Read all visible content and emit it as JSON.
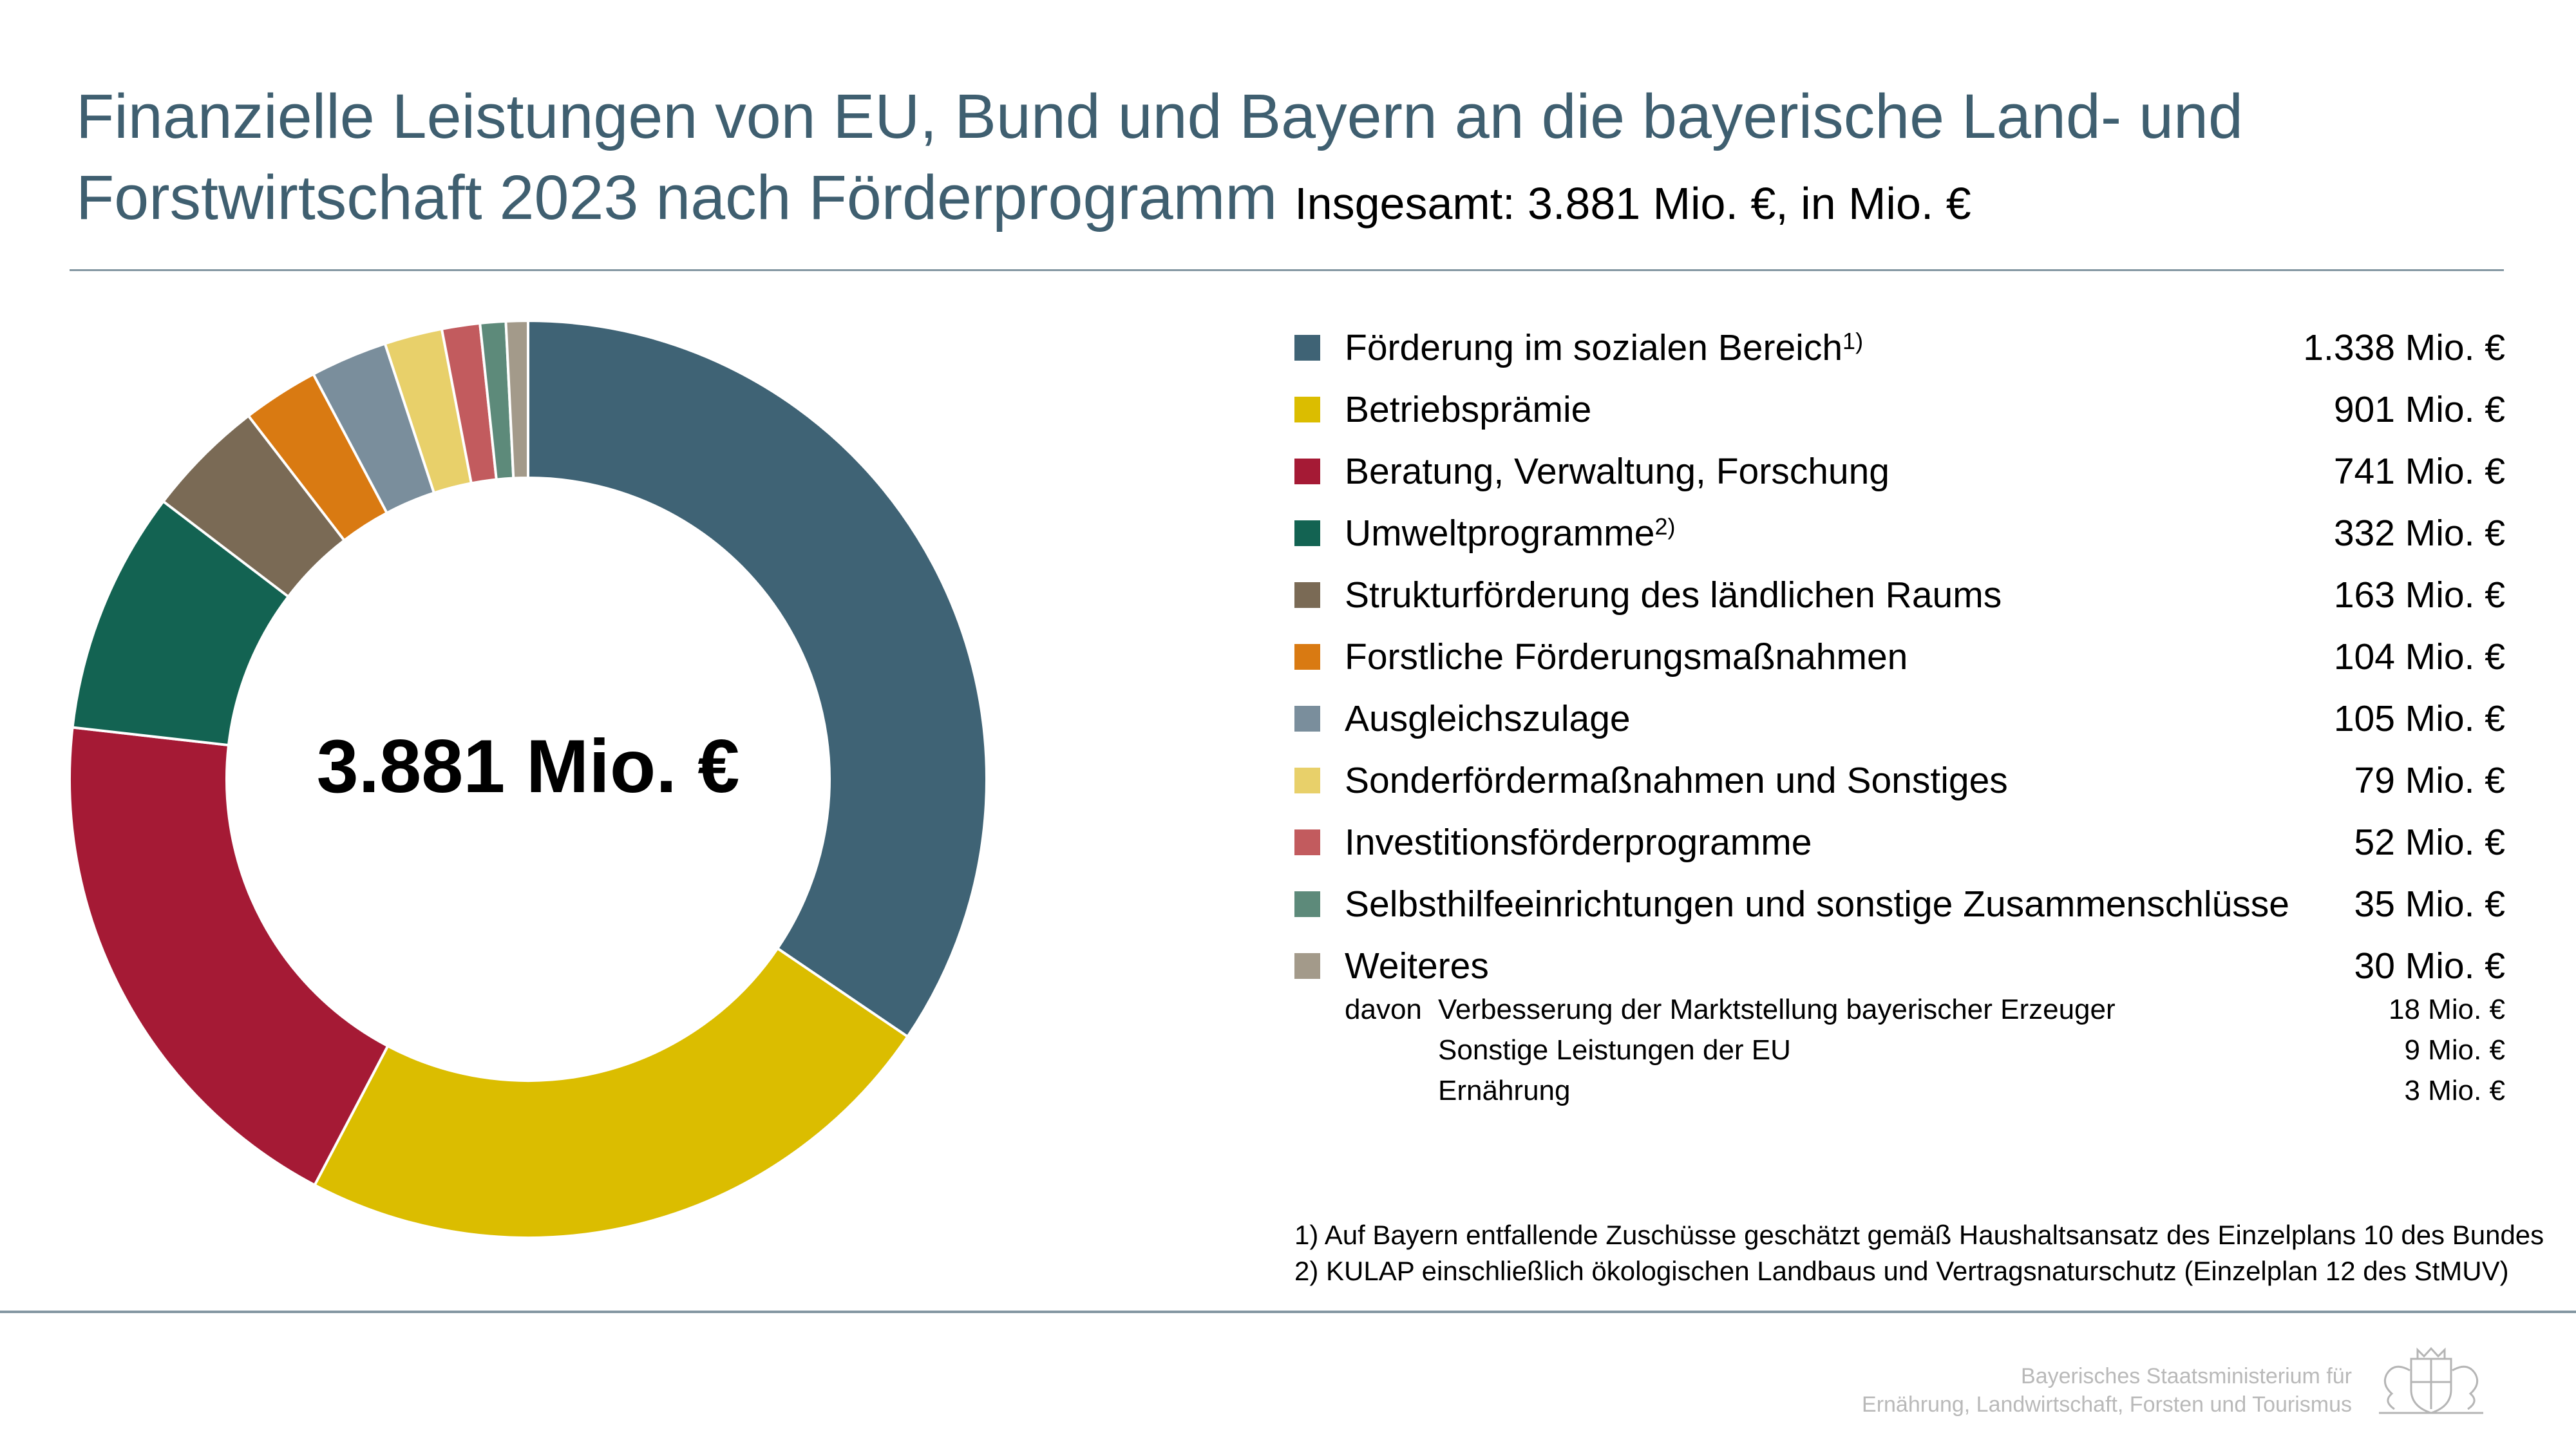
{
  "header": {
    "title_line1": "Finanzielle Leistungen von EU, Bund und Bayern an die bayerische Land- und",
    "title_line2": "Forstwirtschaft 2023 nach Förderprogramm",
    "subtitle": "Insgesamt: 3.881 Mio. €, in Mio. €"
  },
  "chart_data": {
    "type": "pie",
    "style": "donut",
    "center_label": "3.881 Mio. €",
    "total": 3881,
    "unit": "Mio. €",
    "slices": [
      {
        "label": "Förderung im sozialen Bereich",
        "footnote_ref": "1)",
        "value": 1338,
        "value_label": "1.338 Mio. €",
        "color": "#3f6375"
      },
      {
        "label": "Betriebsprämie",
        "footnote_ref": "",
        "value": 901,
        "value_label": "901 Mio. €",
        "color": "#dbbd00"
      },
      {
        "label": "Beratung, Verwaltung, Forschung",
        "footnote_ref": "",
        "value": 741,
        "value_label": "741 Mio. €",
        "color": "#a51a35"
      },
      {
        "label": "Umweltprogramme",
        "footnote_ref": "2)",
        "value": 332,
        "value_label": "332 Mio. €",
        "color": "#136352"
      },
      {
        "label": "Strukturförderung des ländlichen Raums",
        "footnote_ref": "",
        "value": 163,
        "value_label": "163 Mio. €",
        "color": "#7a6a55"
      },
      {
        "label": "Forstliche Förderungsmaßnahmen",
        "footnote_ref": "",
        "value": 104,
        "value_label": "104 Mio. €",
        "color": "#d97a12"
      },
      {
        "label": "Ausgleichszulage",
        "footnote_ref": "",
        "value": 105,
        "value_label": "105 Mio. €",
        "color": "#7a8e9c"
      },
      {
        "label": "Sonderfördermaßnahmen und Sonstiges",
        "footnote_ref": "",
        "value": 79,
        "value_label": "79 Mio. €",
        "color": "#e8d06a"
      },
      {
        "label": "Investitionsförderprogramme",
        "footnote_ref": "",
        "value": 52,
        "value_label": "52 Mio. €",
        "color": "#c25b5e"
      },
      {
        "label": "Selbsthilfeeinrichtungen und sonstige Zusammenschlüsse",
        "footnote_ref": "",
        "value": 35,
        "value_label": "35 Mio. €",
        "color": "#5d8a7a"
      },
      {
        "label": "Weiteres",
        "footnote_ref": "",
        "value": 30,
        "value_label": "30 Mio. €",
        "color": "#a39a8a"
      }
    ],
    "sub_items": {
      "prefix": "davon",
      "items": [
        {
          "label": "Verbesserung der Marktstellung bayerischer Erzeuger",
          "value": 18,
          "value_label": "18 Mio. €"
        },
        {
          "label": "Sonstige Leistungen der EU",
          "value": 9,
          "value_label": "9 Mio. €"
        },
        {
          "label": "Ernährung",
          "value": 3,
          "value_label": "3 Mio. €"
        }
      ]
    }
  },
  "footnotes": [
    "1) Auf Bayern entfallende Zuschüsse geschätzt gemäß Haushaltsansatz des Einzelplans 10 des Bundes",
    "2) KULAP einschließlich ökologischen Landbaus und Vertragsnaturschutz (Einzelplan 12 des StMUV)"
  ],
  "footer": {
    "ministry_line1": "Bayerisches Staatsministerium für",
    "ministry_line2": "Ernährung, Landwirtschaft, Forsten und Tourismus",
    "logo_icon": "bavarian-crest-icon"
  }
}
